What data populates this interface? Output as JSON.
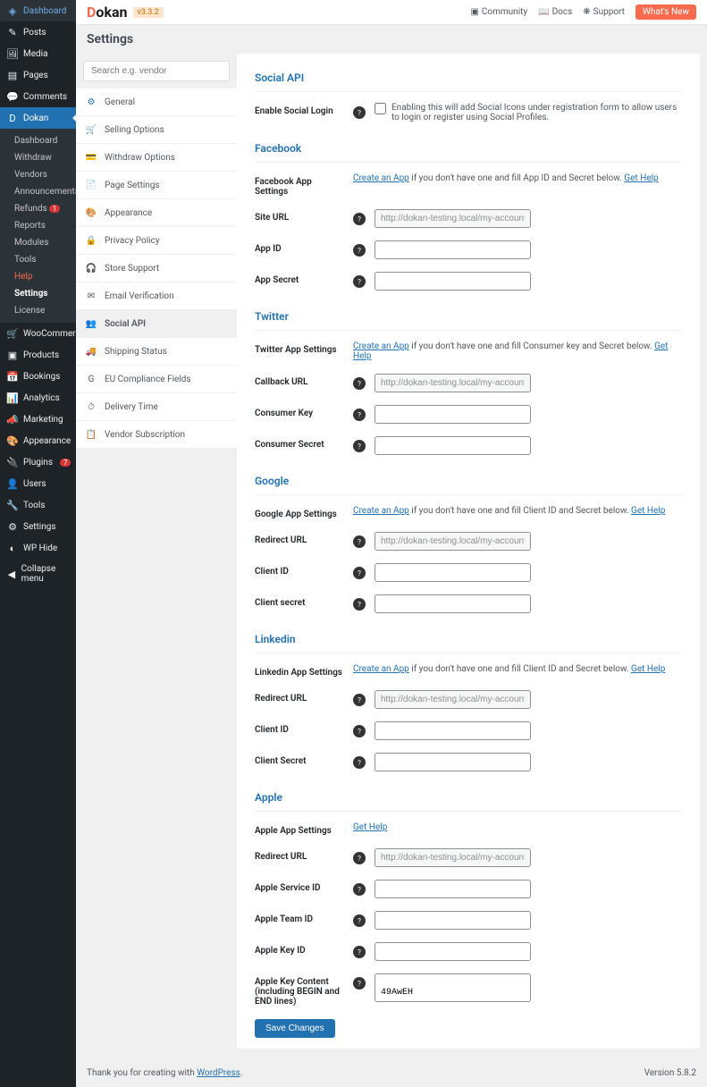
{
  "admin_menu": {
    "items": [
      {
        "icon": "◈",
        "label": "Dashboard"
      },
      {
        "icon": "✎",
        "label": "Posts"
      },
      {
        "icon": "🖼",
        "label": "Media"
      },
      {
        "icon": "▤",
        "label": "Pages"
      },
      {
        "icon": "💬",
        "label": "Comments"
      },
      {
        "icon": "D",
        "label": "Dokan",
        "active": true
      },
      {
        "icon": "🛒",
        "label": "WooCommerce"
      },
      {
        "icon": "▣",
        "label": "Products"
      },
      {
        "icon": "📅",
        "label": "Bookings"
      },
      {
        "icon": "📊",
        "label": "Analytics"
      },
      {
        "icon": "📣",
        "label": "Marketing"
      },
      {
        "icon": "🎨",
        "label": "Appearance"
      },
      {
        "icon": "🔌",
        "label": "Plugins",
        "badge": "7"
      },
      {
        "icon": "👤",
        "label": "Users"
      },
      {
        "icon": "🔧",
        "label": "Tools"
      },
      {
        "icon": "⚙",
        "label": "Settings"
      },
      {
        "icon": "◐",
        "label": "WP Hide"
      },
      {
        "icon": "◀",
        "label": "Collapse menu"
      }
    ],
    "submenu": [
      {
        "label": "Dashboard"
      },
      {
        "label": "Withdraw"
      },
      {
        "label": "Vendors"
      },
      {
        "label": "Announcements"
      },
      {
        "label": "Refunds",
        "badge": "1"
      },
      {
        "label": "Reports"
      },
      {
        "label": "Modules"
      },
      {
        "label": "Tools"
      },
      {
        "label": "Help",
        "help": true
      },
      {
        "label": "Settings",
        "current": true
      },
      {
        "label": "License"
      }
    ]
  },
  "topbar": {
    "logo": "Dokan",
    "version": "v3.3.2",
    "community": "Community",
    "docs": "Docs",
    "support": "Support",
    "whats_new": "What's New"
  },
  "page_title": "Settings",
  "search_placeholder": "Search e.g. vendor",
  "settings_nav": [
    {
      "icon": "⚙",
      "color": "#2271b1",
      "label": "General"
    },
    {
      "icon": "🛒",
      "color": "#00a0d2",
      "label": "Selling Options"
    },
    {
      "icon": "💳",
      "color": "#d63638",
      "label": "Withdraw Options"
    },
    {
      "icon": "📄",
      "color": "#8e44ad",
      "label": "Page Settings"
    },
    {
      "icon": "🎨",
      "color": "#e67e22",
      "label": "Appearance"
    },
    {
      "icon": "🔒",
      "color": "#555",
      "label": "Privacy Policy"
    },
    {
      "icon": "🎧",
      "color": "#555",
      "label": "Store Support"
    },
    {
      "icon": "✉",
      "color": "#555",
      "label": "Email Verification"
    },
    {
      "icon": "👥",
      "color": "#00a32a",
      "label": "Social API",
      "active": true
    },
    {
      "icon": "🚚",
      "color": "#555",
      "label": "Shipping Status"
    },
    {
      "icon": "G",
      "color": "#555",
      "label": "EU Compliance Fields"
    },
    {
      "icon": "⏱",
      "color": "#555",
      "label": "Delivery Time"
    },
    {
      "icon": "📋",
      "color": "#555",
      "label": "Vendor Subscription"
    }
  ],
  "sections": {
    "social_api": {
      "title": "Social API",
      "enable_label": "Enable Social Login",
      "enable_desc": "Enabling this will add Social Icons under registration form to allow users to login or register using Social Profiles."
    },
    "facebook": {
      "title": "Facebook",
      "settings_label": "Facebook App Settings",
      "create_link": "Create an App",
      "desc": " if you don't have one and fill App ID and Secret below. ",
      "help_link": "Get Help",
      "site_url_label": "Site URL",
      "site_url_value": "http://dokan-testing.local/my-account/",
      "app_id_label": "App ID",
      "app_secret_label": "App Secret"
    },
    "twitter": {
      "title": "Twitter",
      "settings_label": "Twitter App Settings",
      "create_link": "Create an App",
      "desc": " if you don't have one and fill Consumer key and Secret below. ",
      "help_link": "Get Help",
      "callback_label": "Callback URL",
      "callback_value": "http://dokan-testing.local/my-account/",
      "key_label": "Consumer Key",
      "secret_label": "Consumer Secret"
    },
    "google": {
      "title": "Google",
      "settings_label": "Google App Settings",
      "create_link": "Create an App",
      "desc": " if you don't have one and fill Client ID and Secret below. ",
      "help_link": "Get Help",
      "redirect_label": "Redirect URL",
      "redirect_value": "http://dokan-testing.local/my-account/",
      "id_label": "Client ID",
      "secret_label": "Client secret"
    },
    "linkedin": {
      "title": "Linkedin",
      "settings_label": "Linkedin App Settings",
      "create_link": "Create an App",
      "desc": " if you don't have one and fill Client ID and Secret below. ",
      "help_link": "Get Help",
      "redirect_label": "Redirect URL",
      "redirect_value": "http://dokan-testing.local/my-account/",
      "id_label": "Client ID",
      "secret_label": "Client Secret"
    },
    "apple": {
      "title": "Apple",
      "settings_label": "Apple App Settings",
      "help_link": "Get Help",
      "redirect_label": "Redirect URL",
      "redirect_value": "http://dokan-testing.local/my-account/",
      "service_id_label": "Apple Service ID",
      "team_id_label": "Apple Team ID",
      "key_id_label": "Apple Key ID",
      "key_content_label": "Apple Key Content (including BEGIN and END lines)",
      "key_content_value": "                                                                49AwEH"
    }
  },
  "save_button": "Save Changes",
  "footer": {
    "thanks": "Thank you for creating with ",
    "wp_link": "WordPress",
    "version": "Version 5.8.2"
  }
}
